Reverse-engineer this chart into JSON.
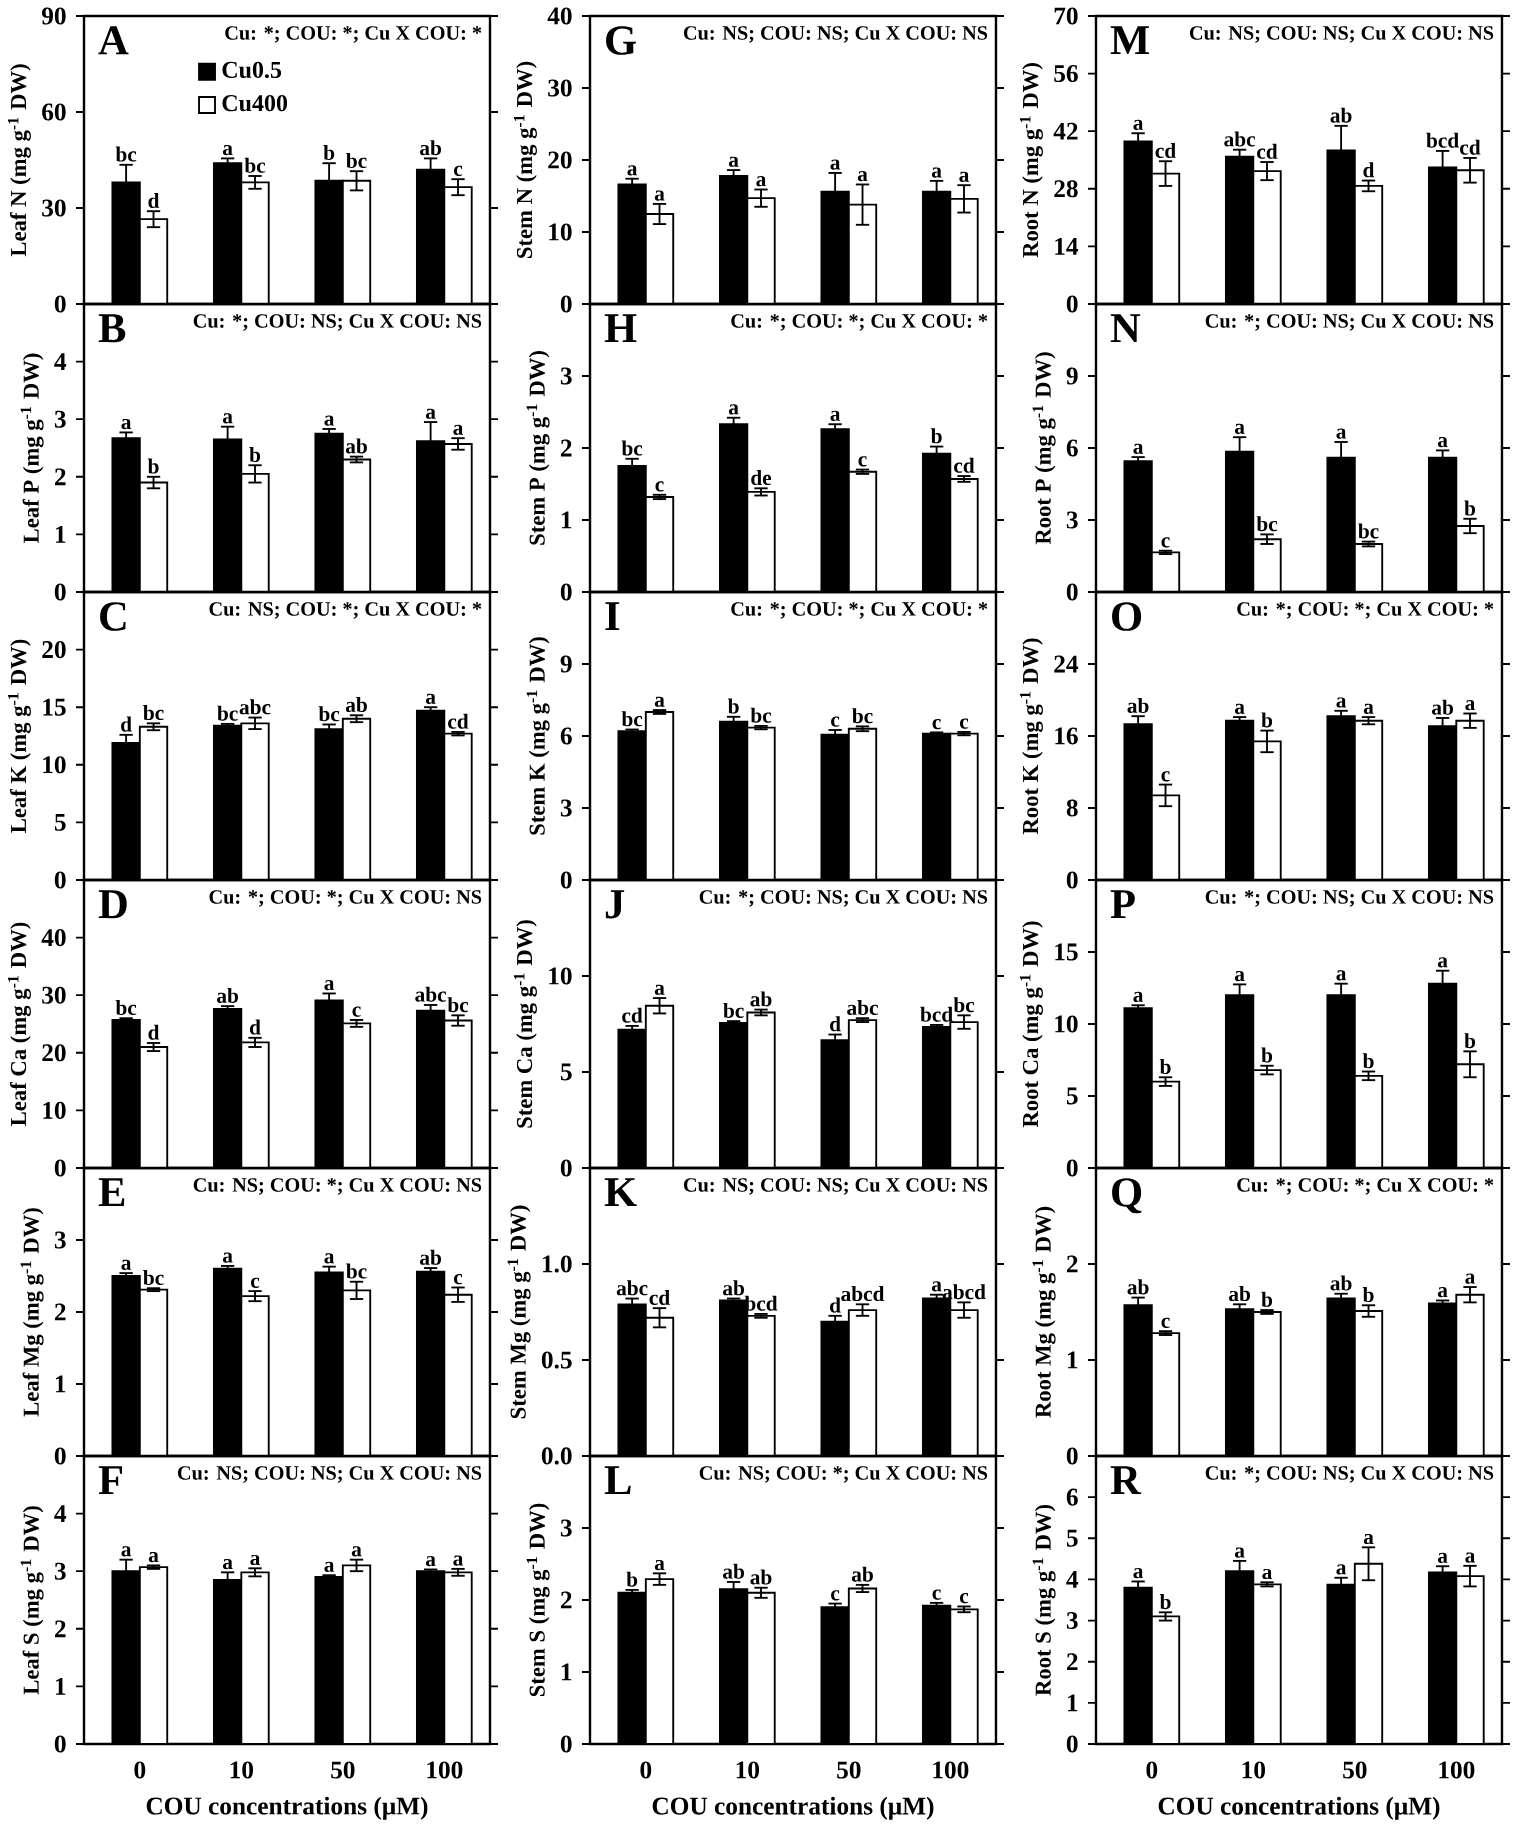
{
  "chart_data": [
    {
      "type": "bar",
      "title": "A",
      "subtitle": "Cu: *; COU: *; Cu X COU: *",
      "ylabel": "Leaf N (mg g$^{-1}$ DW)",
      "categories": [
        "0",
        "10",
        "50",
        "100"
      ],
      "ylim": [
        0,
        90
      ],
      "yticks": [
        0,
        30,
        60,
        90
      ],
      "tick_labels": "y",
      "legend": "top",
      "series": [
        {
          "name": "Cu0.5",
          "color": "#000000",
          "values": [
            38,
            44,
            38.5,
            42
          ],
          "errors": [
            5.5,
            1.5,
            5.5,
            3.5
          ],
          "value_labels": [
            "bc",
            "a",
            "b",
            "ab"
          ]
        },
        {
          "name": "Cu400",
          "color": "#ffffff",
          "values": [
            26.5,
            38,
            38.5,
            36.5
          ],
          "errors": [
            2.5,
            2,
            3,
            2.5
          ],
          "value_labels": [
            "d",
            "bc",
            "bc",
            "c"
          ]
        }
      ]
    },
    {
      "type": "bar",
      "title": "G",
      "subtitle": "Cu: NS; COU: NS; Cu X COU: NS",
      "ylabel": "Stem N (mg g$^{-1}$ DW)",
      "categories": [
        "0",
        "10",
        "50",
        "100"
      ],
      "ylim": [
        0,
        40
      ],
      "yticks": [
        0,
        10,
        20,
        30,
        40
      ],
      "tick_labels": "y",
      "series": [
        {
          "color": "#000000",
          "values": [
            16.6,
            17.8,
            15.6,
            15.6
          ],
          "errors": [
            0.8,
            0.8,
            2.6,
            1.5
          ],
          "value_labels": [
            "a",
            "a",
            "a",
            "a"
          ]
        },
        {
          "color": "#ffffff",
          "values": [
            12.5,
            14.7,
            13.8,
            14.6
          ],
          "errors": [
            1.4,
            1.2,
            2.8,
            1.9
          ],
          "value_labels": [
            "a",
            "a",
            "a",
            "a"
          ]
        }
      ]
    },
    {
      "type": "bar",
      "title": "M",
      "subtitle": "Cu: NS; COU: NS; Cu X COU: NS",
      "ylabel": "Root N (mg g$^{-1}$ DW)",
      "categories": [
        "0",
        "10",
        "50",
        "100"
      ],
      "ylim": [
        0,
        70
      ],
      "yticks": [
        0,
        14,
        28,
        42,
        56,
        70
      ],
      "tick_labels": "y",
      "series": [
        {
          "color": "#000000",
          "values": [
            39.5,
            35.8,
            37.3,
            33.2
          ],
          "errors": [
            2,
            1.7,
            6,
            4
          ],
          "value_labels": [
            "a",
            "abc",
            "ab",
            "bcd"
          ]
        },
        {
          "color": "#ffffff",
          "values": [
            31.7,
            32.3,
            28.7,
            32.5
          ],
          "errors": [
            3,
            2.2,
            1.3,
            3
          ],
          "value_labels": [
            "cd",
            "cd",
            "d",
            "cd"
          ]
        }
      ]
    },
    {
      "type": "bar",
      "title": "B",
      "subtitle": "Cu: *; COU: NS; Cu X COU: NS",
      "ylabel": "Leaf P (mg g$^{-1}$ DW)",
      "categories": [
        "0",
        "10",
        "50",
        "100"
      ],
      "ylim": [
        0,
        5
      ],
      "yticks": [
        0,
        1,
        2,
        3,
        4
      ],
      "tick_labels": "y",
      "series": [
        {
          "color": "#000000",
          "values": [
            2.67,
            2.65,
            2.75,
            2.62
          ],
          "errors": [
            0.1,
            0.22,
            0.08,
            0.33
          ],
          "value_labels": [
            "a",
            "a",
            "a",
            "a"
          ]
        },
        {
          "color": "#ffffff",
          "values": [
            1.9,
            2.05,
            2.3,
            2.57
          ],
          "errors": [
            0.1,
            0.15,
            0.05,
            0.1
          ],
          "value_labels": [
            "b",
            "b",
            "ab",
            "a"
          ]
        }
      ]
    },
    {
      "type": "bar",
      "title": "H",
      "subtitle": "Cu: *; COU: *; Cu X COU: *",
      "ylabel": "Stem P (mg g$^{-1}$ DW)",
      "categories": [
        "0",
        "10",
        "50",
        "100"
      ],
      "ylim": [
        0,
        4
      ],
      "yticks": [
        0,
        1,
        2,
        3
      ],
      "tick_labels": "y",
      "series": [
        {
          "color": "#000000",
          "values": [
            1.75,
            2.33,
            2.26,
            1.92
          ],
          "errors": [
            0.1,
            0.09,
            0.07,
            0.1
          ],
          "value_labels": [
            "bc",
            "a",
            "a",
            "b"
          ]
        },
        {
          "color": "#ffffff",
          "values": [
            1.32,
            1.39,
            1.67,
            1.57
          ],
          "errors": [
            0.03,
            0.05,
            0.03,
            0.04
          ],
          "value_labels": [
            "c",
            "de",
            "c",
            "cd"
          ]
        }
      ]
    },
    {
      "type": "bar",
      "title": "N",
      "subtitle": "Cu: *; COU: NS; Cu X COU: NS",
      "ylabel": "Root P (mg g$^{-1}$ DW)",
      "categories": [
        "0",
        "10",
        "50",
        "100"
      ],
      "ylim": [
        0,
        12
      ],
      "yticks": [
        0,
        3,
        6,
        9
      ],
      "tick_labels": "y",
      "series": [
        {
          "color": "#000000",
          "values": [
            5.45,
            5.85,
            5.6,
            5.6
          ],
          "errors": [
            0.17,
            0.6,
            0.65,
            0.3
          ],
          "value_labels": [
            "a",
            "a",
            "a",
            "a"
          ]
        },
        {
          "color": "#ffffff",
          "values": [
            1.65,
            2.2,
            2.0,
            2.75
          ],
          "errors": [
            0.07,
            0.2,
            0.1,
            0.3
          ],
          "value_labels": [
            "c",
            "bc",
            "bc",
            "b"
          ]
        }
      ]
    },
    {
      "type": "bar",
      "title": "C",
      "subtitle": "Cu: NS; COU: *; Cu X COU: *",
      "ylabel": "Leaf K (mg g$^{-1}$ DW)",
      "categories": [
        "0",
        "10",
        "50",
        "100"
      ],
      "ylim": [
        0,
        25
      ],
      "yticks": [
        0,
        5,
        10,
        15,
        20
      ],
      "tick_labels": "y",
      "series": [
        {
          "color": "#000000",
          "values": [
            11.9,
            13.4,
            13.1,
            14.7
          ],
          "errors": [
            0.7,
            0.15,
            0.4,
            0.3
          ],
          "value_labels": [
            "d",
            "bc",
            "bc",
            "a"
          ]
        },
        {
          "color": "#ffffff",
          "values": [
            13.3,
            13.6,
            14.0,
            12.7
          ],
          "errors": [
            0.3,
            0.5,
            0.3,
            0.15
          ],
          "value_labels": [
            "bc",
            "abc",
            "ab",
            "cd"
          ]
        }
      ]
    },
    {
      "type": "bar",
      "title": "I",
      "subtitle": "Cu: *; COU: *; Cu X COU: *",
      "ylabel": "Stem K (mg g$^{-1}$ DW)",
      "categories": [
        "0",
        "10",
        "50",
        "100"
      ],
      "ylim": [
        0,
        12
      ],
      "yticks": [
        0,
        3,
        6,
        9
      ],
      "tick_labels": "y",
      "series": [
        {
          "color": "#000000",
          "values": [
            6.2,
            6.6,
            6.05,
            6.1
          ],
          "errors": [
            0.07,
            0.2,
            0.2,
            0.05
          ],
          "value_labels": [
            "bc",
            "b",
            "c",
            "c"
          ]
        },
        {
          "color": "#ffffff",
          "values": [
            7.0,
            6.35,
            6.3,
            6.1
          ],
          "errors": [
            0.08,
            0.07,
            0.1,
            0.07
          ],
          "value_labels": [
            "a",
            "bc",
            "bc",
            "c"
          ]
        }
      ]
    },
    {
      "type": "bar",
      "title": "O",
      "subtitle": "Cu: *; COU: *; Cu X COU: *",
      "ylabel": "Root K (mg g$^{-1}$ DW)",
      "categories": [
        "0",
        "10",
        "50",
        "100"
      ],
      "ylim": [
        0,
        32
      ],
      "yticks": [
        0,
        8,
        16,
        24
      ],
      "tick_labels": "y",
      "series": [
        {
          "color": "#000000",
          "values": [
            17.3,
            17.7,
            18.2,
            17.1
          ],
          "errors": [
            0.9,
            0.4,
            0.6,
            0.9
          ],
          "value_labels": [
            "ab",
            "a",
            "a",
            "ab"
          ]
        },
        {
          "color": "#ffffff",
          "values": [
            9.4,
            15.4,
            17.7,
            17.7
          ],
          "errors": [
            1.2,
            1.2,
            0.4,
            0.8
          ],
          "value_labels": [
            "c",
            "b",
            "a",
            "a"
          ]
        }
      ]
    },
    {
      "type": "bar",
      "title": "D",
      "subtitle": "Cu: *; COU: *; Cu X COU: NS",
      "ylabel": "Leaf Ca (mg g$^{-1}$ DW)",
      "categories": [
        "0",
        "10",
        "50",
        "100"
      ],
      "ylim": [
        0,
        50
      ],
      "yticks": [
        0,
        10,
        20,
        30,
        40
      ],
      "tick_labels": "y",
      "series": [
        {
          "color": "#000000",
          "values": [
            25.7,
            27.6,
            29.1,
            27.3
          ],
          "errors": [
            0.3,
            0.5,
            1.2,
            1.0
          ],
          "value_labels": [
            "bc",
            "ab",
            "a",
            "abc"
          ]
        },
        {
          "color": "#ffffff",
          "values": [
            21.0,
            21.8,
            25.1,
            25.6
          ],
          "errors": [
            0.7,
            0.8,
            0.6,
            0.9
          ],
          "value_labels": [
            "d",
            "d",
            "c",
            "bc"
          ]
        }
      ]
    },
    {
      "type": "bar",
      "title": "J",
      "subtitle": "Cu: *; COU: NS; Cu X COU: NS",
      "ylabel": "Stem Ca (mg g$^{-1}$ DW)",
      "categories": [
        "0",
        "10",
        "50",
        "100"
      ],
      "ylim": [
        0,
        15
      ],
      "yticks": [
        0,
        5,
        10
      ],
      "tick_labels": "y",
      "series": [
        {
          "color": "#000000",
          "values": [
            7.2,
            7.55,
            6.65,
            7.35
          ],
          "errors": [
            0.2,
            0.1,
            0.3,
            0.1
          ],
          "value_labels": [
            "cd",
            "bc",
            "d",
            "bcd"
          ]
        },
        {
          "color": "#ffffff",
          "values": [
            8.45,
            8.1,
            7.7,
            7.6
          ],
          "errors": [
            0.4,
            0.15,
            0.1,
            0.35
          ],
          "value_labels": [
            "a",
            "ab",
            "abc",
            "bc"
          ]
        }
      ]
    },
    {
      "type": "bar",
      "title": "P",
      "subtitle": "Cu: *; COU: NS; Cu X COU: NS",
      "ylabel": "Root Ca (mg g$^{-1}$ DW)",
      "categories": [
        "0",
        "10",
        "50",
        "100"
      ],
      "ylim": [
        0,
        20
      ],
      "yticks": [
        0,
        5,
        10,
        15
      ],
      "tick_labels": "y",
      "series": [
        {
          "color": "#000000",
          "values": [
            11.1,
            12.0,
            12.0,
            12.8
          ],
          "errors": [
            0.2,
            0.75,
            0.8,
            0.9
          ],
          "value_labels": [
            "a",
            "a",
            "a",
            "a"
          ]
        },
        {
          "color": "#ffffff",
          "values": [
            6.0,
            6.8,
            6.4,
            7.2
          ],
          "errors": [
            0.3,
            0.3,
            0.3,
            0.9
          ],
          "value_labels": [
            "b",
            "b",
            "b",
            "b"
          ]
        }
      ]
    },
    {
      "type": "bar",
      "title": "E",
      "subtitle": "Cu: NS; COU: *; Cu X COU: NS",
      "ylabel": "Leaf Mg (mg g$^{-1}$ DW)",
      "categories": [
        "0",
        "10",
        "50",
        "100"
      ],
      "ylim": [
        0,
        4
      ],
      "yticks": [
        0,
        1,
        2,
        3
      ],
      "tick_labels": "y",
      "series": [
        {
          "color": "#000000",
          "values": [
            2.5,
            2.6,
            2.55,
            2.56
          ],
          "errors": [
            0.04,
            0.04,
            0.08,
            0.05
          ],
          "value_labels": [
            "a",
            "a",
            "a",
            "ab"
          ]
        },
        {
          "color": "#ffffff",
          "values": [
            2.31,
            2.22,
            2.3,
            2.24
          ],
          "errors": [
            0.02,
            0.07,
            0.12,
            0.1
          ],
          "value_labels": [
            "bc",
            "c",
            "bc",
            "c"
          ]
        }
      ]
    },
    {
      "type": "bar",
      "title": "K",
      "subtitle": "Cu: NS; COU: NS; Cu X COU: NS",
      "ylabel": "Stem Mg (mg g$^{-1}$ DW)",
      "categories": [
        "0",
        "10",
        "50",
        "100"
      ],
      "ylim": [
        0,
        1.5
      ],
      "yticks": [
        {
          "value": 0,
          "label": "0.0"
        },
        0.5,
        {
          "value": 1,
          "label": "1.0"
        }
      ],
      "tick_labels": "y",
      "series": [
        {
          "color": "#000000",
          "values": [
            0.79,
            0.81,
            0.7,
            0.82
          ],
          "errors": [
            0.03,
            0.01,
            0.03,
            0.02
          ],
          "value_labels": [
            "abc",
            "ab",
            "d",
            "a"
          ]
        },
        {
          "color": "#ffffff",
          "values": [
            0.72,
            0.73,
            0.76,
            0.76
          ],
          "errors": [
            0.05,
            0.01,
            0.03,
            0.04
          ],
          "value_labels": [
            "cd",
            "bcd",
            "abcd",
            "abcd"
          ]
        }
      ]
    },
    {
      "type": "bar",
      "title": "Q",
      "subtitle": "Cu: *; COU: *; Cu X COU: *",
      "ylabel": "Root Mg (mg g$^{-1}$ DW)",
      "categories": [
        "0",
        "10",
        "50",
        "100"
      ],
      "ylim": [
        0,
        3
      ],
      "yticks": [
        0,
        1,
        2
      ],
      "tick_labels": "y",
      "series": [
        {
          "color": "#000000",
          "values": [
            1.57,
            1.53,
            1.64,
            1.59
          ],
          "errors": [
            0.08,
            0.05,
            0.05,
            0.03
          ],
          "value_labels": [
            "ab",
            "ab",
            "ab",
            "a"
          ]
        },
        {
          "color": "#ffffff",
          "values": [
            1.28,
            1.5,
            1.51,
            1.68
          ],
          "errors": [
            0.02,
            0.02,
            0.06,
            0.08
          ],
          "value_labels": [
            "c",
            "b",
            "b",
            "a"
          ]
        }
      ]
    },
    {
      "type": "bar",
      "title": "F",
      "subtitle": "Cu: NS; COU: NS; Cu X COU: NS",
      "ylabel": "Leaf S (mg g$^{-1}$ DW)",
      "xlabel": "COU concentrations (μM)",
      "categories": [
        "0",
        "10",
        "50",
        "100"
      ],
      "ylim": [
        0,
        5
      ],
      "yticks": [
        0,
        1,
        2,
        3,
        4
      ],
      "series": [
        {
          "color": "#000000",
          "values": [
            3.0,
            2.85,
            2.9,
            3.0
          ],
          "errors": [
            0.2,
            0.13,
            0.03,
            0.03
          ],
          "value_labels": [
            "a",
            "a",
            "a",
            "a"
          ]
        },
        {
          "color": "#ffffff",
          "values": [
            3.07,
            2.98,
            3.1,
            2.98
          ],
          "errors": [
            0.03,
            0.07,
            0.1,
            0.06
          ],
          "value_labels": [
            "a",
            "a",
            "a",
            "a"
          ]
        }
      ]
    },
    {
      "type": "bar",
      "title": "L",
      "subtitle": "Cu: NS; COU: *; Cu X COU: NS",
      "ylabel": "Stem S (mg g$^{-1}$ DW)",
      "xlabel": "COU concentrations (μM)",
      "categories": [
        "0",
        "10",
        "50",
        "100"
      ],
      "ylim": [
        0,
        4
      ],
      "yticks": [
        0,
        1,
        2,
        3
      ],
      "series": [
        {
          "color": "#000000",
          "values": [
            2.1,
            2.15,
            1.9,
            1.92
          ],
          "errors": [
            0.04,
            0.1,
            0.05,
            0.04
          ],
          "value_labels": [
            "b",
            "ab",
            "c",
            "c"
          ]
        },
        {
          "color": "#ffffff",
          "values": [
            2.29,
            2.1,
            2.16,
            1.87
          ],
          "errors": [
            0.08,
            0.07,
            0.05,
            0.04
          ],
          "value_labels": [
            "a",
            "ab",
            "ab",
            "c"
          ]
        }
      ]
    },
    {
      "type": "bar",
      "title": "R",
      "subtitle": "Cu: *; COU: NS; Cu X COU: NS",
      "ylabel": "Root S (mg g$^{-1}$ DW)",
      "xlabel": "COU concentrations (μM)",
      "categories": [
        "0",
        "10",
        "50",
        "100"
      ],
      "ylim": [
        0,
        7
      ],
      "yticks": [
        0,
        1,
        2,
        3,
        4,
        5,
        6
      ],
      "series": [
        {
          "color": "#000000",
          "values": [
            3.8,
            4.2,
            3.87,
            4.17
          ],
          "errors": [
            0.15,
            0.25,
            0.17,
            0.15
          ],
          "value_labels": [
            "a",
            "a",
            "a",
            "a"
          ]
        },
        {
          "color": "#ffffff",
          "values": [
            3.1,
            3.88,
            4.38,
            4.08
          ],
          "errors": [
            0.1,
            0.05,
            0.4,
            0.25
          ],
          "value_labels": [
            "b",
            "a",
            "a",
            "a"
          ]
        }
      ]
    }
  ]
}
